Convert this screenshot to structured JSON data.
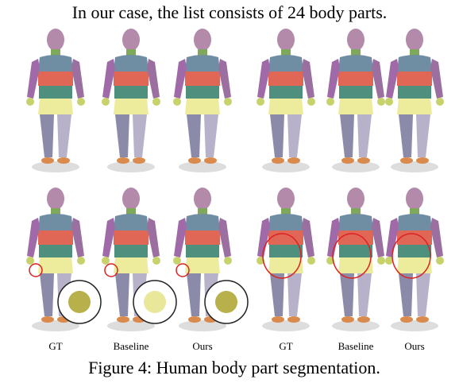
{
  "intro": "In our case, the list consists of 24 body parts.",
  "labels": [
    "GT",
    "Baseline",
    "Ours",
    "GT",
    "Baseline",
    "Ours"
  ],
  "caption": "Figure 4: Human body part segmentation."
}
